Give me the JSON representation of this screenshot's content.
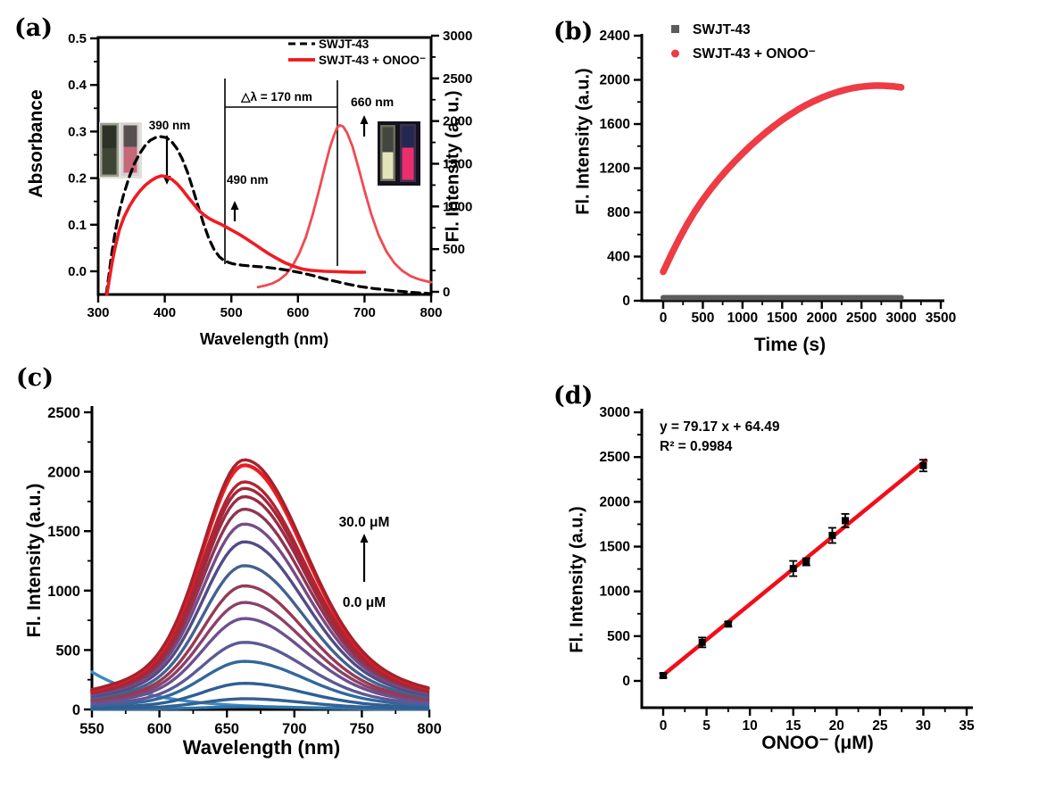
{
  "chart_data": [
    {
      "id": "a",
      "type": "line",
      "panel_label": "(a)",
      "xlabel": "Wavelength (nm)",
      "ylabel": "Absorbance",
      "ylabel_right": "Fl. Intensity (a. u.)",
      "xlim": [
        300,
        800
      ],
      "ylim": [
        0.0,
        0.5
      ],
      "y2lim": [
        0,
        3000
      ],
      "xticks": [
        300,
        400,
        500,
        600,
        700,
        800
      ],
      "yticks": [
        0.0,
        0.1,
        0.2,
        0.3,
        0.4,
        0.5
      ],
      "y2ticks": [
        0,
        500,
        1000,
        1500,
        2000,
        2500,
        3000
      ],
      "legend": [
        {
          "label": "SWJT-43",
          "color": "#000000",
          "line": "dashed"
        },
        {
          "label": "SWJT-43 + ONOO⁻",
          "color": "#f2151c",
          "line": "solid"
        }
      ],
      "annotations": {
        "abs_peak": "390 nm",
        "shoulder": "490 nm",
        "em_peak": "660 nm",
        "stokes_shift": "△λ = 170 nm",
        "stokes_color": "#e8161d",
        "guide_lines_nm": [
          490,
          660
        ]
      },
      "insets": {
        "left_cuvettes": [
          "dark-olive",
          "pink"
        ],
        "right_cuvettes": [
          "pale-yellow-glow",
          "bright-pink-glow"
        ]
      },
      "series": [
        {
          "name": "SWJT-43 absorbance",
          "axis": "left",
          "color": "#000000",
          "style": "dashed",
          "points": [
            [
              312,
              -0.05
            ],
            [
              316,
              -0.01
            ],
            [
              320,
              0.035
            ],
            [
              325,
              0.08
            ],
            [
              331,
              0.125
            ],
            [
              338,
              0.163
            ],
            [
              346,
              0.2
            ],
            [
              354,
              0.23
            ],
            [
              362,
              0.252
            ],
            [
              370,
              0.269
            ],
            [
              378,
              0.281
            ],
            [
              386,
              0.287
            ],
            [
              394,
              0.289
            ],
            [
              402,
              0.287
            ],
            [
              410,
              0.279
            ],
            [
              418,
              0.264
            ],
            [
              426,
              0.242
            ],
            [
              434,
              0.213
            ],
            [
              442,
              0.178
            ],
            [
              450,
              0.14
            ],
            [
              458,
              0.103
            ],
            [
              466,
              0.071
            ],
            [
              474,
              0.047
            ],
            [
              482,
              0.031
            ],
            [
              490,
              0.022
            ],
            [
              502,
              0.016
            ],
            [
              516,
              0.013
            ],
            [
              532,
              0.011
            ],
            [
              550,
              0.009
            ],
            [
              568,
              0.006
            ],
            [
              586,
              0.002
            ],
            [
              604,
              -0.003
            ],
            [
              622,
              -0.009
            ],
            [
              640,
              -0.016
            ],
            [
              658,
              -0.022
            ],
            [
              676,
              -0.028
            ],
            [
              694,
              -0.033
            ],
            [
              714,
              -0.037
            ],
            [
              740,
              -0.041
            ],
            [
              770,
              -0.045
            ],
            [
              800,
              -0.048
            ]
          ]
        },
        {
          "name": "SWJT-43 + ONOO⁻ absorbance",
          "axis": "left",
          "color": "#ee1c24",
          "style": "solid",
          "points": [
            [
              313,
              -0.05
            ],
            [
              317,
              -0.015
            ],
            [
              321,
              0.02
            ],
            [
              326,
              0.055
            ],
            [
              332,
              0.09
            ],
            [
              339,
              0.117
            ],
            [
              347,
              0.14
            ],
            [
              355,
              0.158
            ],
            [
              363,
              0.173
            ],
            [
              371,
              0.185
            ],
            [
              379,
              0.194
            ],
            [
              387,
              0.201
            ],
            [
              395,
              0.205
            ],
            [
              403,
              0.203
            ],
            [
              411,
              0.197
            ],
            [
              419,
              0.187
            ],
            [
              427,
              0.174
            ],
            [
              435,
              0.159
            ],
            [
              443,
              0.145
            ],
            [
              451,
              0.131
            ],
            [
              459,
              0.121
            ],
            [
              467,
              0.113
            ],
            [
              475,
              0.107
            ],
            [
              483,
              0.102
            ],
            [
              491,
              0.096
            ],
            [
              501,
              0.088
            ],
            [
              511,
              0.08
            ],
            [
              521,
              0.071
            ],
            [
              533,
              0.06
            ],
            [
              545,
              0.048
            ],
            [
              557,
              0.037
            ],
            [
              569,
              0.027
            ],
            [
              581,
              0.018
            ],
            [
              593,
              0.011
            ],
            [
              606,
              0.005
            ],
            [
              620,
              0.002
            ],
            [
              640,
              0.0
            ],
            [
              660,
              -0.001
            ],
            [
              680,
              -0.002
            ],
            [
              700,
              -0.002
            ]
          ]
        },
        {
          "name": "SWJT-43 + ONOO⁻ emission",
          "axis": "right",
          "color": "#f04a51",
          "style": "solid",
          "points": [
            [
              540,
              55
            ],
            [
              552,
              75
            ],
            [
              562,
              100
            ],
            [
              572,
              140
            ],
            [
              582,
              205
            ],
            [
              592,
              305
            ],
            [
              602,
              450
            ],
            [
              612,
              645
            ],
            [
              622,
              900
            ],
            [
              632,
              1200
            ],
            [
              641,
              1480
            ],
            [
              648,
              1690
            ],
            [
              654,
              1830
            ],
            [
              659,
              1925
            ],
            [
              663,
              1952
            ],
            [
              668,
              1935
            ],
            [
              674,
              1860
            ],
            [
              682,
              1700
            ],
            [
              691,
              1450
            ],
            [
              700,
              1185
            ],
            [
              710,
              910
            ],
            [
              721,
              665
            ],
            [
              733,
              470
            ],
            [
              745,
              335
            ],
            [
              757,
              245
            ],
            [
              769,
              185
            ],
            [
              781,
              148
            ],
            [
              792,
              125
            ],
            [
              800,
              113
            ]
          ]
        }
      ]
    },
    {
      "id": "b",
      "type": "line",
      "panel_label": "(b)",
      "xlabel": "Time (s)",
      "ylabel": "Fl. Intensity (a.u.)",
      "xlim": [
        0,
        3500
      ],
      "ylim": [
        0,
        2400
      ],
      "xticks": [
        0,
        500,
        1000,
        1500,
        2000,
        2500,
        3000,
        3500
      ],
      "yticks": [
        0,
        400,
        800,
        1200,
        1600,
        2000,
        2400
      ],
      "legend": [
        {
          "label": "SWJT-43",
          "marker": "square",
          "color": "#5c5c5c"
        },
        {
          "label": "SWJT-43 + ONOO⁻",
          "marker": "circle",
          "color": "#ee3b44"
        }
      ],
      "series": [
        {
          "name": "SWJT-43",
          "color": "#5c5c5c",
          "points": [
            [
              0,
              28
            ],
            [
              3000,
              28
            ]
          ]
        },
        {
          "name": "SWJT-43 + ONOO⁻",
          "color": "#ee3b44",
          "points": [
            [
              0,
              262
            ],
            [
              100,
              415
            ],
            [
              200,
              558
            ],
            [
              300,
              690
            ],
            [
              400,
              808
            ],
            [
              500,
              915
            ],
            [
              600,
              1012
            ],
            [
              700,
              1101
            ],
            [
              800,
              1183
            ],
            [
              900,
              1260
            ],
            [
              1000,
              1333
            ],
            [
              1100,
              1402
            ],
            [
              1200,
              1466
            ],
            [
              1300,
              1527
            ],
            [
              1400,
              1584
            ],
            [
              1500,
              1637
            ],
            [
              1600,
              1686
            ],
            [
              1700,
              1731
            ],
            [
              1800,
              1771
            ],
            [
              1900,
              1807
            ],
            [
              2000,
              1839
            ],
            [
              2100,
              1867
            ],
            [
              2200,
              1891
            ],
            [
              2300,
              1911
            ],
            [
              2400,
              1927
            ],
            [
              2500,
              1938
            ],
            [
              2600,
              1945
            ],
            [
              2700,
              1948
            ],
            [
              2800,
              1947
            ],
            [
              2900,
              1942
            ],
            [
              3000,
              1932
            ]
          ]
        }
      ]
    },
    {
      "id": "c",
      "type": "line",
      "panel_label": "(c)",
      "xlabel": "Wavelength (nm)",
      "ylabel": "Fl. Intensity (a.u.)",
      "xlim": [
        550,
        800
      ],
      "ylim": [
        0,
        2500
      ],
      "xticks": [
        550,
        600,
        650,
        700,
        750,
        800
      ],
      "yticks": [
        0,
        500,
        1000,
        1500,
        2000,
        2500
      ],
      "annotations": {
        "conc_max": "30.0 μM",
        "conc_min": "0.0 μM"
      },
      "peak_center_nm": 663,
      "concentration_range_uM": [
        0.0,
        30.0
      ],
      "curves": [
        {
          "type": "decay",
          "start": 310,
          "color": "#3d8bc2"
        },
        {
          "peak": 22,
          "color": "#2e74ac"
        },
        {
          "peak": 90,
          "color": "#35618e"
        },
        {
          "peak": 220,
          "color": "#2f5f93"
        },
        {
          "peak": 405,
          "color": "#33679c"
        },
        {
          "peak": 565,
          "color": "#5a5a96"
        },
        {
          "peak": 765,
          "color": "#6b5190"
        },
        {
          "peak": 900,
          "color": "#8c4168"
        },
        {
          "peak": 1040,
          "color": "#953a55"
        },
        {
          "peak": 1210,
          "color": "#42628f"
        },
        {
          "peak": 1410,
          "color": "#514b86"
        },
        {
          "peak": 1560,
          "color": "#774b85"
        },
        {
          "peak": 1685,
          "color": "#8f3553"
        },
        {
          "peak": 1790,
          "color": "#9a2c44"
        },
        {
          "peak": 1860,
          "color": "#a42739"
        },
        {
          "peak": 1915,
          "color": "#b22432"
        },
        {
          "peak": 2055,
          "color": "#ee1b22"
        },
        {
          "peak": 2100,
          "color": "#a2232e"
        }
      ]
    },
    {
      "id": "d",
      "type": "scatter",
      "panel_label": "(d)",
      "xlabel": "ONOO⁻ (μM)",
      "ylabel": "Fl. Intensity (a.u.)",
      "xlim": [
        0,
        35
      ],
      "ylim": [
        0,
        3000
      ],
      "xticks": [
        0,
        5,
        10,
        15,
        20,
        25,
        30,
        35
      ],
      "yticks": [
        0,
        500,
        1000,
        1500,
        2000,
        2500,
        3000
      ],
      "fit": {
        "slope": 79.17,
        "intercept": 64.49,
        "eq": "y = 79.17 x + 64.49",
        "r2": "R² = 0.9984",
        "line_color": "#f20d19",
        "x_range": [
          0,
          30.4
        ]
      },
      "points": [
        {
          "x": 0,
          "y": 60,
          "err": 25
        },
        {
          "x": 4.5,
          "y": 430,
          "err": 55
        },
        {
          "x": 7.5,
          "y": 635,
          "err": 25
        },
        {
          "x": 15,
          "y": 1255,
          "err": 85
        },
        {
          "x": 16.5,
          "y": 1330,
          "err": 40
        },
        {
          "x": 19.5,
          "y": 1625,
          "err": 85
        },
        {
          "x": 21,
          "y": 1790,
          "err": 75
        },
        {
          "x": 30,
          "y": 2405,
          "err": 65
        }
      ]
    }
  ]
}
